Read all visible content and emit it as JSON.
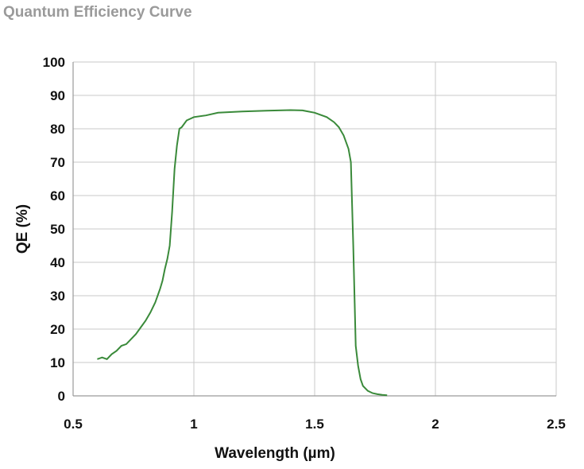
{
  "chart_data": {
    "type": "line",
    "title": "Quantum Efficiency Curve",
    "xlabel": "Wavelength (µm)",
    "ylabel": "QE (%)",
    "xlim": [
      0.5,
      2.5
    ],
    "ylim": [
      0,
      100
    ],
    "x_ticks": [
      0.5,
      1,
      1.5,
      2,
      2.5
    ],
    "x_tick_labels": [
      "0.5",
      "1",
      "1.5",
      "2",
      "2.5"
    ],
    "y_ticks": [
      0,
      10,
      20,
      30,
      40,
      50,
      60,
      70,
      80,
      90,
      100
    ],
    "y_tick_labels": [
      "0",
      "10",
      "20",
      "30",
      "40",
      "50",
      "60",
      "70",
      "80",
      "90",
      "100"
    ],
    "grid": true,
    "line_color": "#3a8a3a",
    "series": [
      {
        "x": [
          0.6,
          0.62,
          0.64,
          0.66,
          0.68,
          0.7,
          0.72,
          0.74,
          0.76,
          0.78,
          0.8,
          0.82,
          0.84,
          0.86,
          0.87,
          0.88,
          0.89,
          0.9,
          0.91,
          0.92,
          0.93,
          0.94,
          0.95,
          0.97,
          1.0,
          1.05,
          1.1,
          1.15,
          1.2,
          1.25,
          1.3,
          1.35,
          1.4,
          1.45,
          1.5,
          1.55,
          1.58,
          1.6,
          1.62,
          1.64,
          1.65,
          1.66,
          1.67,
          1.68,
          1.69,
          1.7,
          1.72,
          1.74,
          1.76,
          1.78,
          1.8
        ],
        "y": [
          11,
          11.5,
          11,
          12.5,
          13.5,
          15,
          15.5,
          17,
          18.5,
          20.5,
          22.5,
          25,
          28,
          32,
          34.5,
          38,
          41,
          45,
          55,
          68,
          75,
          80,
          80.5,
          82.5,
          83.5,
          84,
          84.8,
          85,
          85.2,
          85.3,
          85.4,
          85.5,
          85.6,
          85.5,
          84.8,
          83.5,
          82,
          80.5,
          78,
          74,
          70,
          45,
          15,
          9,
          5,
          3,
          1.5,
          0.8,
          0.5,
          0.3,
          0.2
        ]
      }
    ]
  }
}
